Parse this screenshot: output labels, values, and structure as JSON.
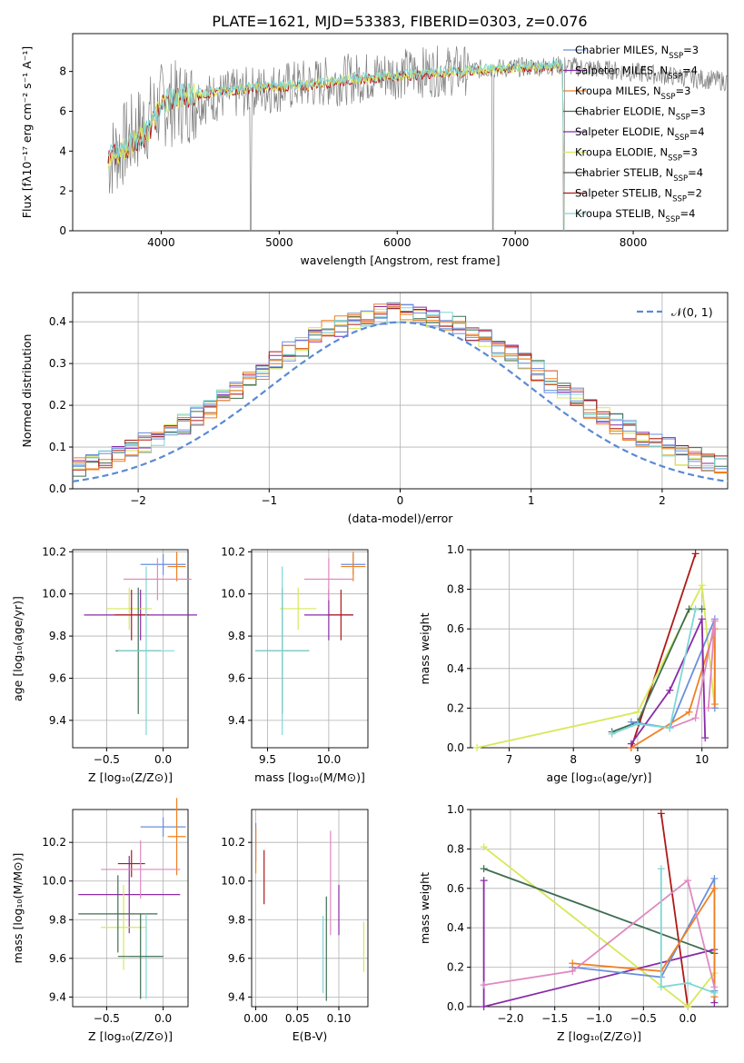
{
  "title": "PLATE=1621, MJD=53383, FIBERID=0303, z=0.076",
  "colors": [
    "#6a8fdc",
    "#f08020",
    "#8a2aa8",
    "#d8e85a",
    "#3f6e52",
    "#b01818",
    "#7fd6d6"
  ],
  "model_names": [
    "Chabrier MILES, N<sub>SSP</sub>=3",
    "Salpeter MILES, N<sub>SSP</sub>=4",
    "Kroupa MILES, N<sub>SSP</sub>=3",
    "Chabrier ELODIE, N<sub>SSP</sub>=3",
    "Salpeter ELODIE, N<sub>SSP</sub>=4",
    "Kroupa ELODIE, N<sub>SSP</sub>=3",
    "Chabrier STELIB, N<sub>SSP</sub>=4",
    "Salpeter STELIB, N<sub>SSP</sub>=2",
    "Kroupa STELIB, N<sub>SSP</sub>=4"
  ],
  "chart_data": [
    {
      "id": "spectrum",
      "type": "line",
      "xlabel": "wavelength [Angstrom, rest frame]",
      "ylabel": "Flux [fλ10⁻¹⁷ erg cm⁻² s⁻¹ A⁻¹]",
      "xlim": [
        3250,
        8800
      ],
      "ylim": [
        0,
        9.9
      ],
      "xticks": [
        "4000",
        "5000",
        "6000",
        "7000",
        "8000"
      ],
      "yticks": [
        "0",
        "2",
        "4",
        "6",
        "8"
      ],
      "legend": [
        {
          "label": "Chabrier MILES, N",
          "sub": "SSP",
          "suffix": "=3",
          "color": "#6a8fdc"
        },
        {
          "label": "Salpeter MILES, N",
          "sub": "SSP",
          "suffix": "=4",
          "color": "#8a2aa8"
        },
        {
          "label": "Kroupa MILES, N",
          "sub": "SSP",
          "suffix": "=3",
          "color": "#f08020"
        },
        {
          "label": "Chabrier ELODIE, N",
          "sub": "SSP",
          "suffix": "=3",
          "color": "#3f6e52"
        },
        {
          "label": "Salpeter ELODIE, N",
          "sub": "SSP",
          "suffix": "=4",
          "color": "#8a2aa8"
        },
        {
          "label": "Kroupa ELODIE, N",
          "sub": "SSP",
          "suffix": "=3",
          "color": "#d8e85a"
        },
        {
          "label": "Chabrier STELIB, N",
          "sub": "SSP",
          "suffix": "=4",
          "color": "#555555"
        },
        {
          "label": "Salpeter STELIB, N",
          "sub": "SSP",
          "suffix": "=2",
          "color": "#b01818"
        },
        {
          "label": "Kroupa STELIB, N",
          "sub": "SSP",
          "suffix": "=4",
          "color": "#7fd6d6"
        }
      ],
      "continuum": [
        [
          3550,
          3.6
        ],
        [
          3700,
          4.2
        ],
        [
          3900,
          5.0
        ],
        [
          4000,
          6.4
        ],
        [
          4200,
          6.8
        ],
        [
          4500,
          7.0
        ],
        [
          4800,
          7.2
        ],
        [
          5200,
          7.3
        ],
        [
          5600,
          7.6
        ],
        [
          6000,
          7.8
        ],
        [
          6500,
          8.0
        ],
        [
          7000,
          8.2
        ],
        [
          7400,
          8.3
        ],
        [
          7420,
          0.0
        ]
      ],
      "data_continuum": [
        [
          3550,
          3.5
        ],
        [
          4000,
          6.3
        ],
        [
          5000,
          7.2
        ],
        [
          6000,
          7.9
        ],
        [
          7000,
          8.2
        ],
        [
          7400,
          8.3
        ],
        [
          8800,
          7.5
        ]
      ],
      "dips": [
        [
          4760,
          0
        ],
        [
          6810,
          0
        ],
        [
          7410,
          0
        ]
      ]
    },
    {
      "id": "residuals",
      "type": "histogram",
      "xlabel": "(data-model)/error",
      "ylabel": "Normed distribution",
      "xlim": [
        -2.5,
        2.5
      ],
      "ylim": [
        0,
        0.47
      ],
      "xticks": [
        "-2",
        "-1",
        "0",
        "1",
        "2"
      ],
      "yticks": [
        "0.0",
        "0.1",
        "0.2",
        "0.3",
        "0.4"
      ],
      "legend": "𝒩(0, 1)",
      "bin_width": 0.1,
      "series_offsets": [
        0.0,
        0.02,
        -0.015,
        0.03,
        -0.025,
        0.01,
        -0.02,
        0.025,
        -0.01
      ]
    },
    {
      "id": "age_vs_Z",
      "type": "errorbar",
      "xlabel": "Z [log₁₀(Z/Z⊙)]",
      "ylabel": "age  [log₁₀(age/yr)]",
      "xlim": [
        -0.8,
        0.22
      ],
      "ylim": [
        9.27,
        10.21
      ],
      "xticks": [
        "-0.5",
        "0.0"
      ],
      "yticks": [
        "9.4",
        "9.6",
        "9.8",
        "10.0",
        "10.2"
      ],
      "points": [
        {
          "x": 0.0,
          "xerr": 0.2,
          "y": 10.14,
          "yerr": 0.05,
          "color": "#6a8fdc"
        },
        {
          "x": 0.12,
          "xerr": 0.08,
          "y": 10.13,
          "yerr": 0.07,
          "color": "#f08020"
        },
        {
          "x": -0.2,
          "xerr": 0.5,
          "y": 9.9,
          "yerr": 0.12,
          "color": "#8a2aa8"
        },
        {
          "x": -0.3,
          "xerr": 0.2,
          "y": 9.93,
          "yerr": 0.1,
          "color": "#d8e85a"
        },
        {
          "x": -0.22,
          "xerr": 0.2,
          "y": 9.73,
          "yerr": 0.3,
          "color": "#3f6e52"
        },
        {
          "x": -0.28,
          "xerr": 0.15,
          "y": 9.9,
          "yerr": 0.12,
          "color": "#b01818"
        },
        {
          "x": -0.15,
          "xerr": 0.25,
          "y": 9.73,
          "yerr": 0.4,
          "color": "#7fd6d6"
        },
        {
          "x": -0.05,
          "xerr": 0.3,
          "y": 10.07,
          "yerr": 0.1,
          "color": "#e088c0"
        }
      ]
    },
    {
      "id": "age_vs_mass",
      "type": "errorbar",
      "xlabel": "mass [log₁₀(M/M⊙)]",
      "ylabel": "",
      "xlim": [
        9.37,
        10.32
      ],
      "ylim": [
        9.27,
        10.21
      ],
      "xticks": [
        "9.5",
        "10.0"
      ],
      "yticks": [
        "9.4",
        "9.6",
        "9.8",
        "10.0",
        "10.2"
      ],
      "points": [
        {
          "x": 10.2,
          "xerr": 0.1,
          "y": 10.14,
          "yerr": 0.05,
          "color": "#6a8fdc"
        },
        {
          "x": 10.2,
          "xerr": 0.1,
          "y": 10.13,
          "yerr": 0.07,
          "color": "#f08020"
        },
        {
          "x": 10.0,
          "xerr": 0.2,
          "y": 9.9,
          "yerr": 0.12,
          "color": "#8a2aa8"
        },
        {
          "x": 9.75,
          "xerr": 0.15,
          "y": 9.93,
          "yerr": 0.1,
          "color": "#d8e85a"
        },
        {
          "x": 9.62,
          "xerr": 0.22,
          "y": 9.73,
          "yerr": 0.3,
          "color": "#3f6e52"
        },
        {
          "x": 10.1,
          "xerr": 0.1,
          "y": 9.9,
          "yerr": 0.12,
          "color": "#b01818"
        },
        {
          "x": 9.62,
          "xerr": 0.22,
          "y": 9.73,
          "yerr": 0.4,
          "color": "#7fd6d6"
        },
        {
          "x": 10.0,
          "xerr": 0.2,
          "y": 10.07,
          "yerr": 0.1,
          "color": "#e088c0"
        }
      ]
    },
    {
      "id": "weight_vs_age",
      "type": "line",
      "xlabel": "age  [log₁₀(age/yr)]",
      "ylabel": "mass weight",
      "xlim": [
        6.4,
        10.4
      ],
      "ylim": [
        0,
        1.0
      ],
      "xticks": [
        "7",
        "8",
        "9",
        "10"
      ],
      "yticks": [
        "0.0",
        "0.2",
        "0.4",
        "0.6",
        "0.8",
        "1.0"
      ],
      "series": [
        {
          "color": "#b01818",
          "points": [
            [
              8.9,
              0.0
            ],
            [
              9.9,
              0.98
            ]
          ]
        },
        {
          "color": "#d8e85a",
          "points": [
            [
              6.5,
              0.0
            ],
            [
              9.0,
              0.18
            ],
            [
              10.0,
              0.82
            ],
            [
              10.2,
              0.2
            ]
          ]
        },
        {
          "color": "#3f6e52",
          "points": [
            [
              8.6,
              0.08
            ],
            [
              9.0,
              0.13
            ],
            [
              9.8,
              0.7
            ],
            [
              10.0,
              0.7
            ]
          ]
        },
        {
          "color": "#6a8fdc",
          "points": [
            [
              8.9,
              0.13
            ],
            [
              9.5,
              0.1
            ],
            [
              10.2,
              0.65
            ],
            [
              10.2,
              0.2
            ]
          ]
        },
        {
          "color": "#f08020",
          "points": [
            [
              8.9,
              0.0
            ],
            [
              9.8,
              0.18
            ],
            [
              10.2,
              0.6
            ],
            [
              10.2,
              0.22
            ]
          ]
        },
        {
          "color": "#8a2aa8",
          "points": [
            [
              8.9,
              0.02
            ],
            [
              9.5,
              0.29
            ],
            [
              10.0,
              0.65
            ],
            [
              10.05,
              0.05
            ]
          ]
        },
        {
          "color": "#e088c0",
          "points": [
            [
              9.5,
              0.1
            ],
            [
              9.9,
              0.15
            ],
            [
              10.2,
              0.64
            ],
            [
              10.1,
              0.2
            ]
          ]
        },
        {
          "color": "#7fd6d6",
          "points": [
            [
              8.6,
              0.07
            ],
            [
              9.0,
              0.12
            ],
            [
              9.5,
              0.1
            ],
            [
              9.9,
              0.7
            ]
          ]
        }
      ]
    },
    {
      "id": "mass_vs_Z",
      "type": "errorbar",
      "xlabel": "Z [log₁₀(Z/Z⊙)]",
      "ylabel": "mass [log₁₀(M/M⊙)]",
      "xlim": [
        -0.8,
        0.22
      ],
      "ylim": [
        9.35,
        10.37
      ],
      "xticks": [
        "-0.5",
        "0.0"
      ],
      "yticks": [
        "9.4",
        "9.6",
        "9.8",
        "10.0",
        "10.2"
      ],
      "points": [
        {
          "x": 0.0,
          "xerr": 0.2,
          "y": 10.28,
          "yerr": 0.05,
          "color": "#6a8fdc"
        },
        {
          "x": 0.12,
          "xerr": 0.08,
          "y": 10.23,
          "yerr": 0.2,
          "color": "#f08020"
        },
        {
          "x": -0.3,
          "xerr": 0.45,
          "y": 9.93,
          "yerr": 0.2,
          "color": "#8a2aa8"
        },
        {
          "x": -0.35,
          "xerr": 0.2,
          "y": 9.76,
          "yerr": 0.22,
          "color": "#d8e85a"
        },
        {
          "x": -0.4,
          "xerr": 0.35,
          "y": 9.83,
          "yerr": 0.2,
          "color": "#3f6e52"
        },
        {
          "x": -0.28,
          "xerr": 0.12,
          "y": 10.09,
          "yerr": 0.07,
          "color": "#b01818"
        },
        {
          "x": -0.15,
          "xerr": 0.15,
          "y": 9.61,
          "yerr": 0.22,
          "color": "#7fd6d6"
        },
        {
          "x": -0.2,
          "xerr": 0.35,
          "y": 10.06,
          "yerr": 0.15,
          "color": "#e088c0"
        },
        {
          "x": -0.2,
          "xerr": 0.2,
          "y": 9.61,
          "yerr": 0.22,
          "color": "#3f6e52"
        }
      ]
    },
    {
      "id": "mass_vs_EBV",
      "type": "errorbar",
      "xlabel": "E(B-V)",
      "ylabel": "",
      "xlim": [
        -0.005,
        0.135
      ],
      "ylim": [
        9.35,
        10.37
      ],
      "xticks": [
        "0.00",
        "0.05",
        "0.10"
      ],
      "yticks": [
        "9.4",
        "9.6",
        "9.8",
        "10.0",
        "10.2"
      ],
      "points": [
        {
          "x": 0.0,
          "xerr": 0,
          "y": 10.2,
          "yerr": 0.1,
          "color": "#6a8fdc"
        },
        {
          "x": 0.0,
          "xerr": 0,
          "y": 10.16,
          "yerr": 0.12,
          "color": "#f08020"
        },
        {
          "x": 0.01,
          "xerr": 0,
          "y": 10.02,
          "yerr": 0.14,
          "color": "#b01818"
        },
        {
          "x": 0.1,
          "xerr": 0,
          "y": 9.85,
          "yerr": 0.13,
          "color": "#8a2aa8"
        },
        {
          "x": 0.09,
          "xerr": 0,
          "y": 9.99,
          "yerr": 0.27,
          "color": "#e088c0"
        },
        {
          "x": 0.085,
          "xerr": 0,
          "y": 9.65,
          "yerr": 0.27,
          "color": "#3f6e52"
        },
        {
          "x": 0.081,
          "xerr": 0,
          "y": 9.62,
          "yerr": 0.2,
          "color": "#7fd6d6"
        },
        {
          "x": 0.13,
          "xerr": 0,
          "y": 9.66,
          "yerr": 0.13,
          "color": "#d8e85a"
        }
      ]
    },
    {
      "id": "weight_vs_Z",
      "type": "line",
      "xlabel": "Z [log₁₀(Z/Z⊙)]",
      "ylabel": "mass weight",
      "xlim": [
        -2.45,
        0.45
      ],
      "ylim": [
        0,
        1.0
      ],
      "xticks": [
        "-2.0",
        "-1.5",
        "-1.0",
        "-0.5",
        "0.0"
      ],
      "yticks": [
        "0.0",
        "0.2",
        "0.4",
        "0.6",
        "0.8",
        "1.0"
      ],
      "series": [
        {
          "color": "#b01818",
          "points": [
            [
              -0.3,
              0.98
            ],
            [
              0.0,
              0.0
            ]
          ]
        },
        {
          "color": "#d8e85a",
          "points": [
            [
              -2.3,
              0.81
            ],
            [
              0.0,
              0.0
            ],
            [
              0.3,
              0.17
            ]
          ]
        },
        {
          "color": "#3f6e52",
          "points": [
            [
              -2.3,
              0.7
            ],
            [
              0.3,
              0.27
            ]
          ]
        },
        {
          "color": "#8a2aa8",
          "points": [
            [
              -2.3,
              0.64
            ],
            [
              -2.3,
              0.0
            ],
            [
              0.3,
              0.29
            ],
            [
              0.3,
              0.02
            ]
          ]
        },
        {
          "color": "#6a8fdc",
          "points": [
            [
              -1.3,
              0.2
            ],
            [
              -0.3,
              0.15
            ],
            [
              0.3,
              0.65
            ],
            [
              0.3,
              0.08
            ]
          ]
        },
        {
          "color": "#f08020",
          "points": [
            [
              -1.3,
              0.22
            ],
            [
              -0.3,
              0.18
            ],
            [
              0.3,
              0.6
            ],
            [
              0.3,
              0.05
            ]
          ]
        },
        {
          "color": "#e088c0",
          "points": [
            [
              -2.3,
              0.11
            ],
            [
              -1.3,
              0.18
            ],
            [
              0.0,
              0.64
            ],
            [
              0.3,
              0.1
            ]
          ]
        },
        {
          "color": "#7fd6d6",
          "points": [
            [
              -0.3,
              0.7
            ],
            [
              -0.3,
              0.1
            ],
            [
              0.0,
              0.12
            ],
            [
              0.3,
              0.07
            ]
          ]
        }
      ]
    }
  ]
}
